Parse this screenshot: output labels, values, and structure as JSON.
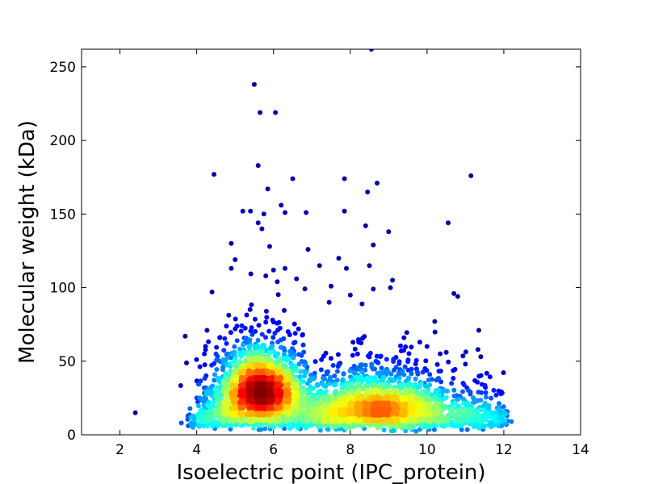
{
  "chart_data": {
    "type": "scatter",
    "xlabel": "Isoelectric point (IPC_protein)",
    "ylabel": "Molecular weight (kDa)",
    "xlim": [
      1,
      14
    ],
    "ylim": [
      0,
      262
    ],
    "xticks": [
      2,
      4,
      6,
      8,
      10,
      12,
      14
    ],
    "yticks": [
      0,
      50,
      100,
      150,
      200,
      250
    ],
    "grid": false,
    "legend": "none",
    "colormap": "jet (point density)",
    "color_scale": [
      "#00007f",
      "#0000ff",
      "#007fff",
      "#00ffff",
      "#7fff7f",
      "#ffff00",
      "#ff7f00",
      "#ff0000",
      "#7f0000"
    ],
    "density_clusters": [
      {
        "x": 5.6,
        "y": 31,
        "relative_density": 1.0
      },
      {
        "x": 8.6,
        "y": 24,
        "relative_density": 0.55
      }
    ],
    "outlier_points": [
      [
        2.4,
        15
      ],
      [
        3.7,
        67
      ],
      [
        4.45,
        177
      ],
      [
        4.4,
        97
      ],
      [
        4.9,
        130
      ],
      [
        5.2,
        152
      ],
      [
        5.4,
        152
      ],
      [
        5.5,
        238
      ],
      [
        5.6,
        183
      ],
      [
        5.65,
        219
      ],
      [
        6.05,
        219
      ],
      [
        5.85,
        167
      ],
      [
        5.75,
        150
      ],
      [
        5.7,
        140
      ],
      [
        5.6,
        144
      ],
      [
        5.9,
        128
      ],
      [
        6.2,
        156
      ],
      [
        6.3,
        151
      ],
      [
        6.5,
        174
      ],
      [
        6.85,
        151
      ],
      [
        6.9,
        126
      ],
      [
        7.85,
        174
      ],
      [
        8.45,
        165
      ],
      [
        8.7,
        171
      ],
      [
        8.4,
        142
      ],
      [
        8.6,
        129
      ],
      [
        9.0,
        138
      ],
      [
        7.85,
        152
      ],
      [
        7.7,
        120
      ],
      [
        7.9,
        113
      ],
      [
        8.5,
        115
      ],
      [
        9.1,
        105
      ],
      [
        8.6,
        99
      ],
      [
        8.0,
        95
      ],
      [
        10.55,
        144
      ],
      [
        10.7,
        96
      ],
      [
        10.8,
        94
      ],
      [
        10.2,
        77
      ],
      [
        11.35,
        71
      ],
      [
        12.2,
        9
      ],
      [
        8.55,
        262
      ],
      [
        3.9,
        5
      ],
      [
        6.0,
        112
      ],
      [
        6.3,
        113
      ],
      [
        5.0,
        119
      ],
      [
        4.9,
        113
      ],
      [
        5.8,
        108
      ],
      [
        6.1,
        104
      ],
      [
        6.6,
        106
      ],
      [
        7.2,
        115
      ],
      [
        7.5,
        101
      ],
      [
        7.45,
        90
      ],
      [
        9.4,
        66
      ],
      [
        10.0,
        60
      ],
      [
        10.5,
        56
      ],
      [
        11.0,
        48
      ],
      [
        11.4,
        53
      ],
      [
        11.8,
        27
      ],
      [
        11.9,
        18
      ],
      [
        3.6,
        8
      ],
      [
        4.0,
        25
      ],
      [
        4.2,
        55
      ],
      [
        4.6,
        66
      ]
    ]
  }
}
